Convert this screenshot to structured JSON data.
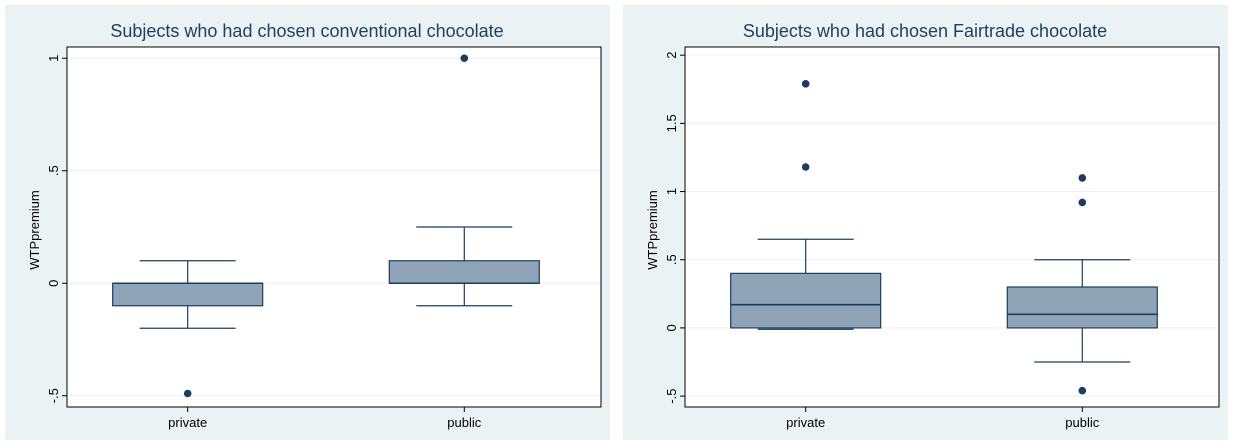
{
  "colors": {
    "box_fill": "#90a4b8",
    "line": "#1c3d5e",
    "outlier": "#1c3d5e",
    "panel_bg": "#eaf2f3"
  },
  "chart_data": [
    {
      "type": "boxplot",
      "title": "Subjects who had chosen conventional chocolate",
      "xlabel": "",
      "ylabel": "WTPpremium",
      "categories": [
        "private",
        "public"
      ],
      "ylim": [
        -0.55,
        1.05
      ],
      "yticks": [
        -0.5,
        0,
        0.5,
        1
      ],
      "ytick_labels": [
        "-.5",
        "0",
        ".5",
        "1"
      ],
      "grid": true,
      "boxes": [
        {
          "category": "private",
          "whisker_low": -0.2,
          "q1": -0.1,
          "median": 0.0,
          "q3": 0.0,
          "whisker_high": 0.1,
          "outliers": [
            -0.49
          ]
        },
        {
          "category": "public",
          "whisker_low": -0.1,
          "q1": 0.0,
          "median": 0.0,
          "q3": 0.1,
          "whisker_high": 0.25,
          "outliers": [
            1.0
          ]
        }
      ]
    },
    {
      "type": "boxplot",
      "title": "Subjects who had chosen Fairtrade chocolate",
      "xlabel": "",
      "ylabel": "WTPpremium",
      "categories": [
        "private",
        "public"
      ],
      "ylim": [
        -0.58,
        2.06
      ],
      "yticks": [
        -0.5,
        0,
        0.5,
        1,
        1.5,
        2
      ],
      "ytick_labels": [
        "-.5",
        "0",
        ".5",
        "1",
        "1.5",
        "2"
      ],
      "grid": true,
      "boxes": [
        {
          "category": "private",
          "whisker_low": -0.01,
          "q1": 0.0,
          "median": 0.17,
          "q3": 0.4,
          "whisker_high": 0.65,
          "outliers": [
            1.18,
            1.79
          ]
        },
        {
          "category": "public",
          "whisker_low": -0.25,
          "q1": 0.0,
          "median": 0.1,
          "q3": 0.3,
          "whisker_high": 0.5,
          "outliers": [
            -0.46,
            0.92,
            1.1
          ]
        }
      ]
    }
  ]
}
